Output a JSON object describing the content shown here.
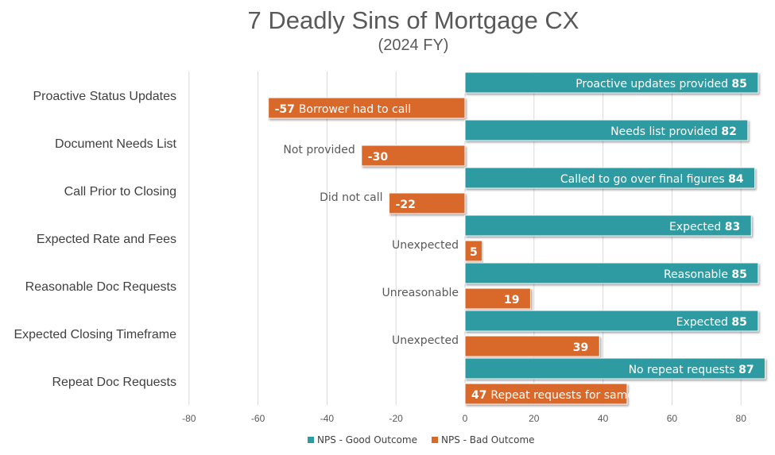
{
  "chart_data": {
    "type": "bar",
    "orientation": "horizontal",
    "title": "7 Deadly Sins of Mortgage CX",
    "subtitle": "(2024 FY)",
    "categories": [
      "Proactive Status Updates",
      "Document Needs List",
      "Call Prior to Closing",
      "Expected Rate and Fees",
      "Reasonable Doc Requests",
      "Expected Closing Timeframe",
      "Repeat Doc Requests"
    ],
    "series": [
      {
        "name": "NPS - Good Outcome",
        "color": "#2e9ba3",
        "values": [
          85,
          82,
          84,
          83,
          85,
          85,
          87
        ],
        "labels": [
          "Proactive updates provided",
          "Needs list provided",
          "Called to go over final figures",
          "Expected",
          "Reasonable",
          "Expected",
          "No repeat requests"
        ]
      },
      {
        "name": "NPS - Bad Outcome",
        "color": "#d9692b",
        "values": [
          -57,
          -30,
          -22,
          5,
          19,
          39,
          47
        ],
        "labels": [
          "Borrower had to call",
          "Not provided",
          "Did not call",
          "Unexpected",
          "Unreasonable",
          "Unexpected",
          "Repeat requests for same doc"
        ]
      }
    ],
    "xlim": [
      -80,
      87
    ],
    "xticks": [
      -80,
      -60,
      -40,
      -20,
      0,
      20,
      40,
      60,
      80
    ],
    "grid": "vertical",
    "legend_position": "bottom"
  }
}
